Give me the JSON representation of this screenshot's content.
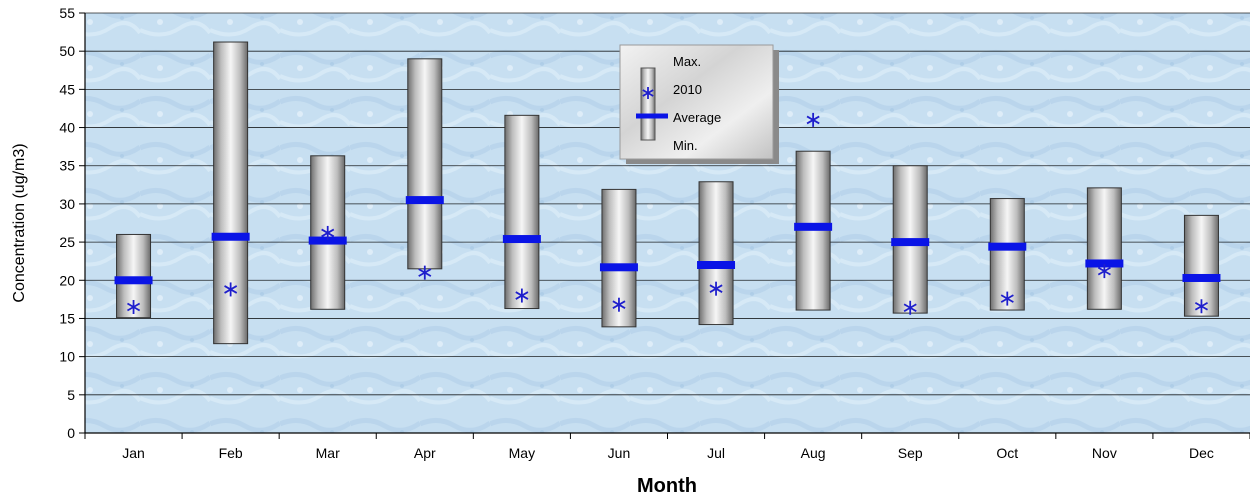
{
  "chart_data": {
    "type": "box",
    "title": "",
    "xlabel": "Month",
    "ylabel": "Concentration (ug/m3)",
    "ylim": [
      0,
      55
    ],
    "y_ticks": [
      0,
      5,
      10,
      15,
      20,
      25,
      30,
      35,
      40,
      45,
      50,
      55
    ],
    "grid": true,
    "legend_position": "top-center",
    "categories": [
      "Jan",
      "Feb",
      "Mar",
      "Apr",
      "May",
      "Jun",
      "Jul",
      "Aug",
      "Sep",
      "Oct",
      "Nov",
      "Dec"
    ],
    "max": [
      26.0,
      51.2,
      36.3,
      49.0,
      41.6,
      31.9,
      32.9,
      36.9,
      35.0,
      30.7,
      32.1,
      28.5
    ],
    "min": [
      15.1,
      11.7,
      16.2,
      21.5,
      16.3,
      13.9,
      14.2,
      16.1,
      15.7,
      16.1,
      16.2,
      15.3
    ],
    "average": [
      20.0,
      25.7,
      25.2,
      30.5,
      25.4,
      21.7,
      22.0,
      27.0,
      25.0,
      24.4,
      22.2,
      20.3
    ],
    "year_2010": [
      16.5,
      18.8,
      26.2,
      21.0,
      18.0,
      16.8,
      18.9,
      41.0,
      16.4,
      17.6,
      21.2,
      16.6
    ],
    "legend": {
      "max_label": "Max.",
      "year_label": "2010",
      "average_label": "Average",
      "min_label": "Min."
    },
    "colors": {
      "marker": "#1f1fcc",
      "average_bar": "#0a14e6",
      "box_edge": "#333333"
    }
  }
}
